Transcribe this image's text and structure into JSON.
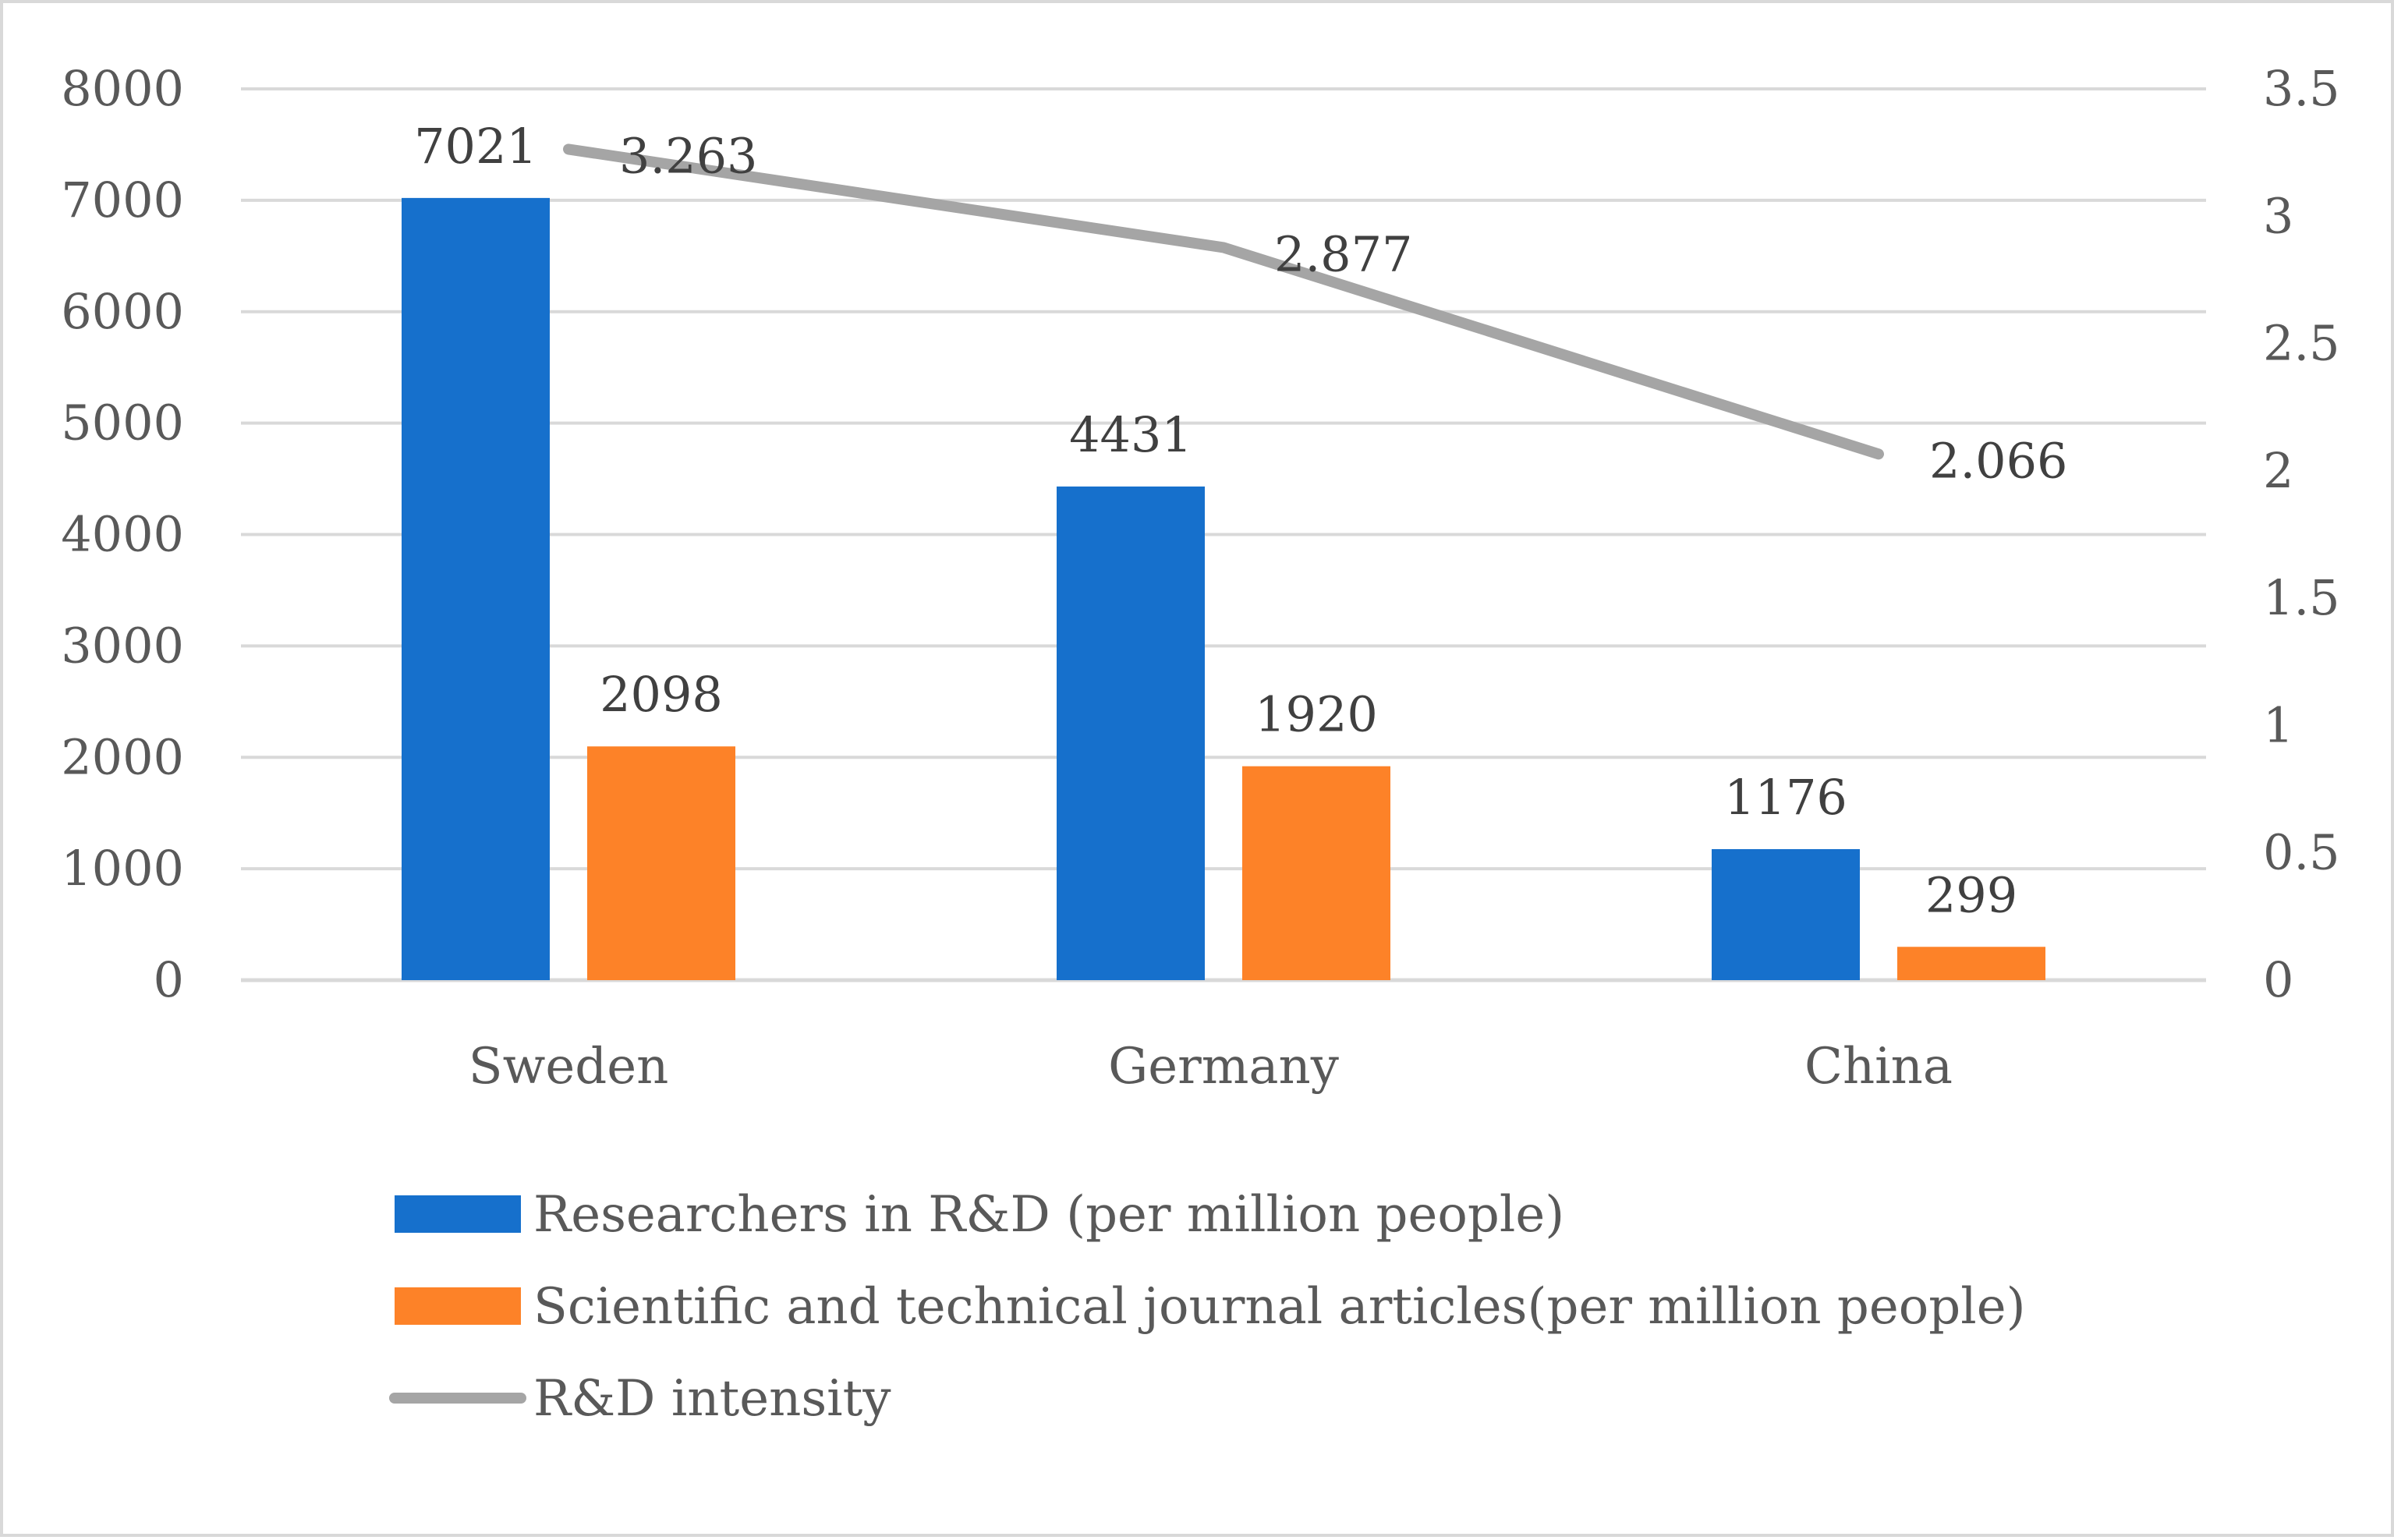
{
  "chart_data": {
    "type": "bar",
    "title": "",
    "categories": [
      "Sweden",
      "Germany",
      "China"
    ],
    "series": [
      {
        "name": "Researchers in R&D (per million people)",
        "kind": "bar",
        "axis": "left",
        "color": "#1670cc",
        "values": [
          7021,
          4431,
          1176
        ],
        "labels": [
          "7021",
          "4431",
          "1176"
        ]
      },
      {
        "name": "Scientific and technical journal articles(per million people)",
        "kind": "bar",
        "axis": "left",
        "color": "#fd8228",
        "values": [
          2098,
          1920,
          299
        ],
        "labels": [
          "2098",
          "1920",
          "299"
        ]
      },
      {
        "name": "R&D intensity",
        "kind": "line",
        "axis": "right",
        "color": "#a5a5a5",
        "values": [
          3.263,
          2.877,
          2.066
        ],
        "labels": [
          "3.263",
          "2.877",
          "2.066"
        ]
      }
    ],
    "y_left": {
      "ylim": [
        0,
        8000
      ],
      "ticks": [
        "0",
        "1000",
        "2000",
        "3000",
        "4000",
        "5000",
        "6000",
        "7000",
        "8000"
      ]
    },
    "y_right": {
      "ylim": [
        0,
        3.5
      ],
      "ticks": [
        "0",
        "0.5",
        "1",
        "1.5",
        "2",
        "2.5",
        "3",
        "3.5"
      ]
    },
    "grid": true,
    "legend": "bottom-left",
    "xlabel": "",
    "ylabel": ""
  }
}
